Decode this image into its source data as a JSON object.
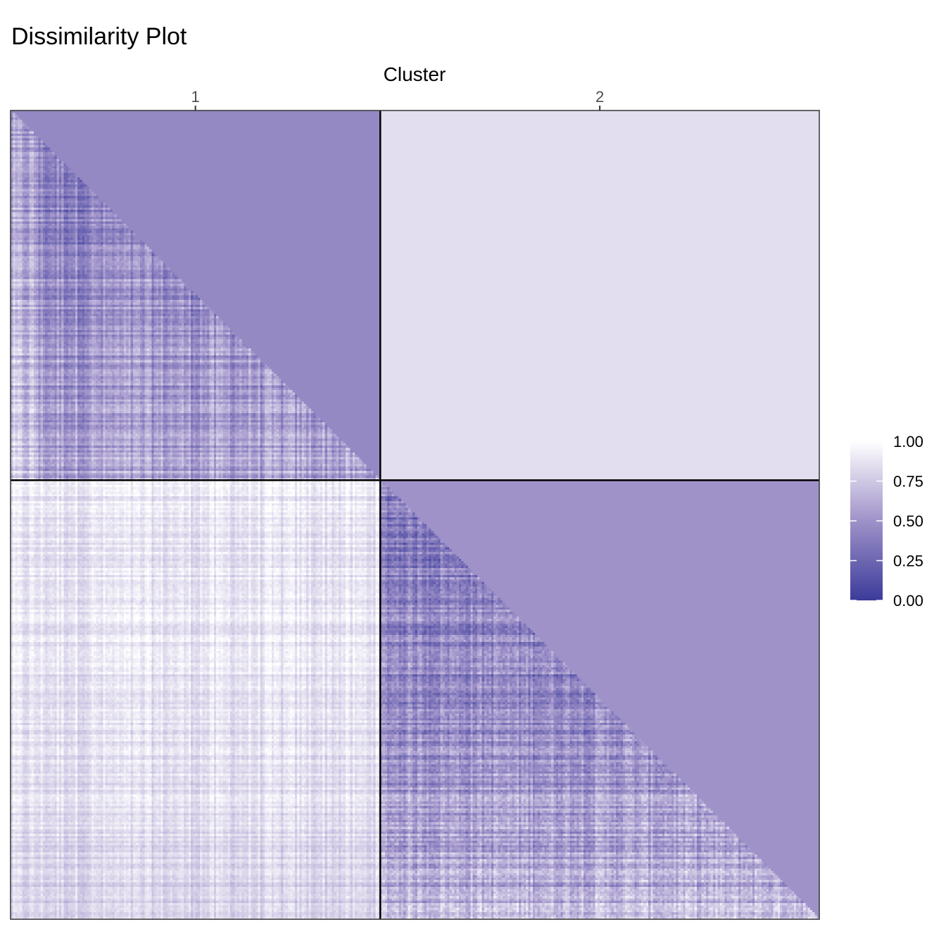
{
  "chart_data": {
    "type": "heatmap",
    "title": "Dissimilarity Plot",
    "x_axis_title": "Cluster",
    "x_axis_position": "top",
    "clusters": [
      "1",
      "2"
    ],
    "cluster_sizes": [
      160,
      190
    ],
    "value_range": [
      0,
      1
    ],
    "upper_triangle_fill_value": {
      "within_cluster_1": 0.45,
      "within_cluster_2": 0.5,
      "between_1_2": 0.85
    },
    "typical_values": {
      "within_cluster_1_lower": 0.42,
      "within_cluster_2_lower": 0.4,
      "between_2_1_lower": 0.88
    },
    "colorscale": {
      "low": "#3b3b9a",
      "mid": "#9f92c9",
      "high": "#ffffff"
    },
    "legend": {
      "position": "right",
      "ticks": [
        "1.00",
        "0.75",
        "0.50",
        "0.25",
        "0.00"
      ],
      "tick_values": [
        1.0,
        0.75,
        0.5,
        0.25,
        0.0
      ]
    },
    "grid": false
  }
}
